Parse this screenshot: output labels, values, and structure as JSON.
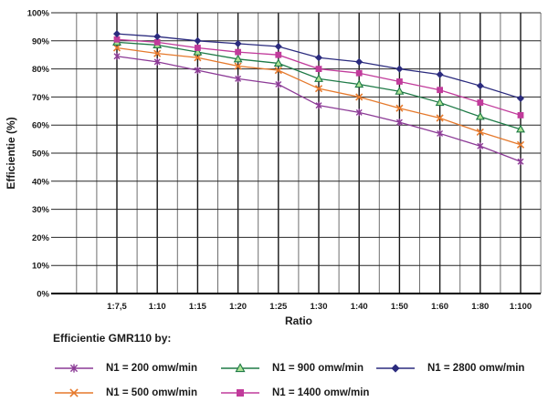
{
  "chart_data": {
    "type": "line",
    "title": "",
    "xlabel": "Ratio",
    "ylabel": "Efficientie (%)",
    "legend_title": "Efficientie GMR110 by:",
    "legend_position": "bottom",
    "grid": true,
    "ylim": [
      0,
      100
    ],
    "y_tick_labels": [
      "0%",
      "10%",
      "20%",
      "30%",
      "40%",
      "50%",
      "60%",
      "70%",
      "80%",
      "90%",
      "100%"
    ],
    "categories": [
      "1:7,5",
      "1:10",
      "1:15",
      "1:20",
      "1:25",
      "1:30",
      "1:40",
      "1:50",
      "1:60",
      "1:80",
      "1:100"
    ],
    "series": [
      {
        "name": "N1 = 200 omw/min",
        "marker": "asterisk",
        "color": "#8C3A96",
        "values": [
          84.5,
          82.5,
          79.5,
          76.5,
          74.5,
          67,
          64.5,
          61,
          57,
          52.5,
          47
        ]
      },
      {
        "name": "N1 = 500 omw/min",
        "marker": "x",
        "color": "#E5792C",
        "values": [
          87.5,
          85.5,
          84,
          81,
          79.5,
          73,
          70,
          66,
          62.5,
          57.5,
          53
        ]
      },
      {
        "name": "N1 = 900 omw/min",
        "marker": "triangle",
        "color": "#1E7A46",
        "marker_fill": "#ACE294",
        "values": [
          89.5,
          88.5,
          86,
          83.5,
          82,
          76.5,
          74.5,
          72,
          68,
          63,
          58.5
        ]
      },
      {
        "name": "N1 = 1400 omw/min",
        "marker": "square",
        "color": "#C13B9B",
        "values": [
          90.5,
          89.5,
          87.5,
          86,
          85,
          80,
          78.5,
          75.5,
          72.5,
          68,
          63.5
        ]
      },
      {
        "name": "N1 = 2800 omw/min",
        "marker": "diamond",
        "color": "#2B2B7E",
        "values": [
          92.5,
          91.5,
          90,
          89,
          88,
          84,
          82.5,
          80,
          78,
          74,
          69.5
        ]
      }
    ]
  }
}
